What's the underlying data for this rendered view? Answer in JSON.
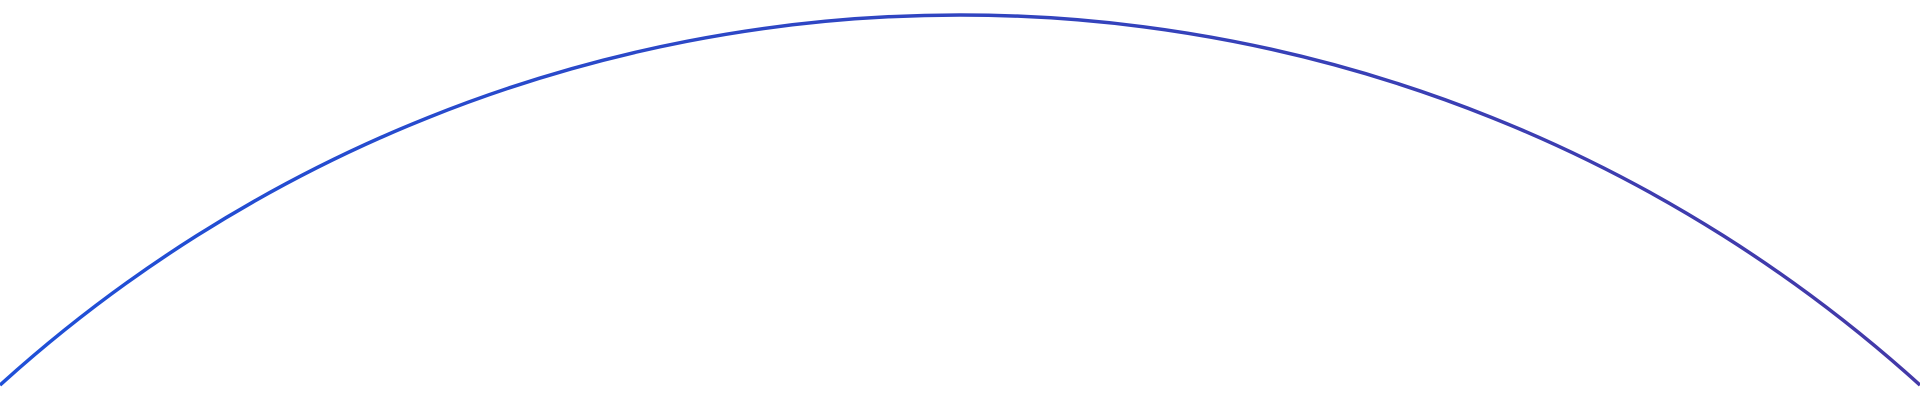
{
  "decoration": {
    "shape": "arc",
    "colors": {
      "start": "#1f50d8",
      "end": "#4339a8",
      "background": "#ffffff"
    }
  }
}
